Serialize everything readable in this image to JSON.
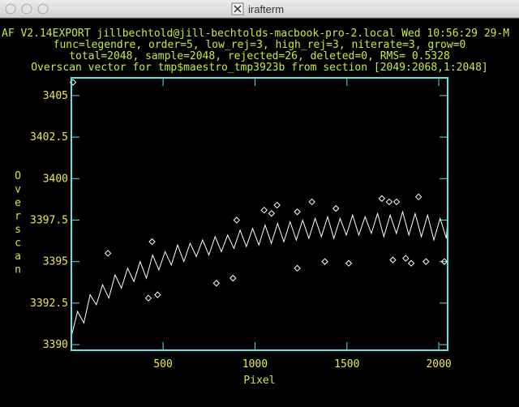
{
  "window": {
    "title": "irafterm"
  },
  "chart_data": {
    "type": "line",
    "header_lines": [
      "AF V2.14EXPORT jillbechtold@jill-bechtolds-macbook-pro-2.local Wed 10:56:29 29-M",
      "func=legendre, order=5, low_rej=3, high_rej=3, niterate=3, grow=0",
      "total=2048, sample=2048, rejected=26, deleted=0, RMS= 0.5328"
    ],
    "title": "Overscan vector for tmp$maestro_tmp3923b from section [2049:2068,1:2048]",
    "xlabel": "Pixel",
    "ylabel": "Overscan",
    "xlim": [
      1,
      2048
    ],
    "ylim": [
      3389.66,
      3406.07
    ],
    "xticks": [
      500,
      1000,
      1500,
      2000
    ],
    "yticks": [
      3390,
      3392.5,
      3395,
      3397.5,
      3400,
      3402.5,
      3405
    ],
    "axis_color": "#66e0e0",
    "series": [
      {
        "type": "line",
        "color": "#ffffff",
        "x": [
          1,
          35,
          69,
          103,
          137,
          171,
          205,
          239,
          273,
          307,
          341,
          375,
          409,
          443,
          477,
          511,
          545,
          579,
          613,
          647,
          681,
          715,
          749,
          783,
          817,
          851,
          885,
          919,
          953,
          987,
          1021,
          1055,
          1089,
          1123,
          1157,
          1191,
          1225,
          1259,
          1293,
          1327,
          1361,
          1395,
          1429,
          1463,
          1497,
          1531,
          1565,
          1599,
          1633,
          1667,
          1701,
          1735,
          1769,
          1803,
          1837,
          1871,
          1905,
          1939,
          1973,
          2007,
          2041,
          2048
        ],
        "values": [
          3390.5,
          3392.0,
          3391.3,
          3393.0,
          3392.4,
          3393.6,
          3392.8,
          3394.2,
          3393.4,
          3394.6,
          3393.8,
          3395.0,
          3394.0,
          3395.4,
          3394.5,
          3395.6,
          3394.8,
          3396.0,
          3395.0,
          3396.1,
          3395.3,
          3396.3,
          3395.4,
          3396.5,
          3395.6,
          3396.6,
          3395.8,
          3396.9,
          3395.9,
          3397.0,
          3396.0,
          3397.2,
          3396.1,
          3397.3,
          3396.2,
          3397.4,
          3396.3,
          3397.5,
          3396.4,
          3397.6,
          3396.5,
          3397.7,
          3396.4,
          3397.6,
          3396.6,
          3397.8,
          3396.6,
          3397.7,
          3396.7,
          3397.9,
          3396.5,
          3397.8,
          3396.7,
          3398.0,
          3396.6,
          3397.9,
          3396.5,
          3397.8,
          3396.3,
          3397.6,
          3396.4,
          3397.5
        ]
      },
      {
        "type": "scatter",
        "marker": "diamond",
        "color": "#ffffff",
        "x": [
          10,
          200,
          420,
          440,
          470,
          790,
          880,
          900,
          1050,
          1090,
          1120,
          1230,
          1230,
          1310,
          1380,
          1440,
          1510,
          1690,
          1730,
          1750,
          1770,
          1820,
          1850,
          1890,
          1930,
          2030
        ],
        "values": [
          3405.8,
          3395.5,
          3392.8,
          3396.2,
          3393.0,
          3393.7,
          3394.0,
          3397.5,
          3398.1,
          3397.9,
          3398.4,
          3394.6,
          3398.0,
          3398.6,
          3395.0,
          3398.2,
          3394.9,
          3398.8,
          3398.6,
          3395.1,
          3398.6,
          3395.2,
          3394.9,
          3398.9,
          3395.0,
          3395.0
        ]
      }
    ]
  }
}
